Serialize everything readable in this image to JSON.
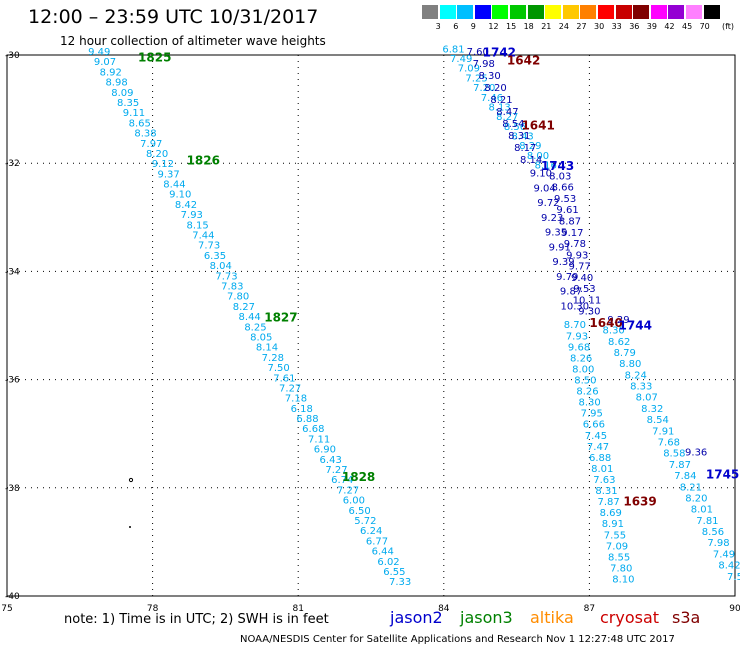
{
  "header": {
    "title": "12:00 – 23:59 UTC 10/31/2017",
    "subtitle": "12 hour collection of altimeter wave heights"
  },
  "legend": {
    "unit": "(ft)",
    "colors": [
      "#808080",
      "#00ffff",
      "#00bfff",
      "#0000ff",
      "#00ff00",
      "#00c800",
      "#009600",
      "#ffff00",
      "#ffc800",
      "#ff8000",
      "#ff0000",
      "#c80000",
      "#800000",
      "#ff00ff",
      "#9400d3",
      "#ff80ff",
      "#000000"
    ],
    "labels": [
      "3",
      "6",
      "9",
      "12",
      "15",
      "18",
      "21",
      "24",
      "27",
      "30",
      "33",
      "36",
      "39",
      "42",
      "45",
      "70"
    ]
  },
  "note": "note:  1) Time is in UTC;  2) SWH is in feet",
  "satellites": [
    {
      "name": "jason2",
      "color": "#0000cc"
    },
    {
      "name": "jason3",
      "color": "#008000"
    },
    {
      "name": "altika",
      "color": "#ff8c00"
    },
    {
      "name": "cryosat",
      "color": "#cc0000"
    },
    {
      "name": "s3a",
      "color": "#800000"
    }
  ],
  "footer": "NOAA/NESDIS Center for Satellite Applications and Research    Nov  1 12:27:48 UTC 2017",
  "chart_data": {
    "type": "scatter",
    "x_ticks": [
      "75",
      "78",
      "81",
      "84",
      "87",
      "90"
    ],
    "y_ticks": [
      "-30",
      "-32",
      "-34",
      "-36",
      "-38",
      "-40"
    ],
    "xlim": [
      75,
      90
    ],
    "ylim": [
      -40,
      -30
    ],
    "grid": true,
    "track_labels": [
      {
        "text": "1825",
        "color": "#008000",
        "lon": 77.7,
        "lat": -30.05
      },
      {
        "text": "1826",
        "color": "#008000",
        "lon": 78.7,
        "lat": -31.95
      },
      {
        "text": "1827",
        "color": "#008000",
        "lon": 80.3,
        "lat": -34.85
      },
      {
        "text": "1828",
        "color": "#008000",
        "lon": 81.9,
        "lat": -37.8
      },
      {
        "text": "1742",
        "color": "#0000cc",
        "lon": 84.8,
        "lat": -29.95
      },
      {
        "text": "1642",
        "color": "#800000",
        "lon": 85.3,
        "lat": -30.1
      },
      {
        "text": "1641",
        "color": "#800000",
        "lon": 85.6,
        "lat": -31.3
      },
      {
        "text": "1743",
        "color": "#0000cc",
        "lon": 86.0,
        "lat": -32.05
      },
      {
        "text": "1640",
        "color": "#800000",
        "lon": 87.0,
        "lat": -34.95
      },
      {
        "text": "1744",
        "color": "#0000cc",
        "lon": 87.6,
        "lat": -35.0
      },
      {
        "text": "1639",
        "color": "#800000",
        "lon": 87.7,
        "lat": -38.25
      },
      {
        "text": "1745",
        "color": "#0000cc",
        "lon": 89.4,
        "lat": -37.75
      }
    ],
    "tracks": [
      {
        "color": "#00aaee",
        "lon_start": 76.9,
        "lat_start": -30.0,
        "lon_end": 83.1,
        "lat_end": -39.8,
        "values": [
          "9.49",
          "9.07",
          "8.92",
          "8.98",
          "8.09",
          "8.35",
          "9.11",
          "8.65",
          "8.38",
          "7.97",
          "8.20",
          "9.12",
          "9.37",
          "8.44",
          "9.10",
          "8.42",
          "7.93",
          "8.15",
          "7.44",
          "7.73",
          "6.35",
          "8.04",
          "7.73",
          "7.83",
          "7.80",
          "8.27",
          "8.44",
          "8.25",
          "8.05",
          "8.14",
          "7.28",
          "7.50",
          "7.61",
          "7.27",
          "7.18",
          "6.18",
          "6.88",
          "6.68",
          "7.11",
          "6.90",
          "6.43",
          "7.27",
          "6.74",
          "7.27",
          "6.00",
          "6.50",
          "5.72",
          "6.24",
          "6.77",
          "6.44",
          "6.02",
          "6.55",
          "7.33"
        ]
      },
      {
        "color": "#00aaee",
        "lon_start": 84.2,
        "lat_start": -29.95,
        "lon_end": 86.1,
        "lat_end": -32.1,
        "values": [
          "6.81",
          "7.49",
          "7.09",
          "7.25",
          "7.20",
          "7.46",
          "8.13",
          "8.27",
          "8.56",
          "8.43",
          "8.29",
          "8.00",
          "8.16"
        ]
      },
      {
        "color": "#0000aa",
        "lon_start": 84.7,
        "lat_start": -30.0,
        "lon_end": 85.8,
        "lat_end": -32.0,
        "values": [
          "7.60",
          "7.98",
          "8.30",
          "8.20",
          "8.21",
          "8.47",
          "8.54",
          "8.31",
          "8.17",
          "8.14"
        ]
      },
      {
        "color": "#0000aa",
        "lon_start": 86.0,
        "lat_start": -32.25,
        "lon_end": 86.7,
        "lat_end": -34.7,
        "values": [
          "9.10",
          "9.04",
          "9.72",
          "9.23",
          "9.35",
          "9.91",
          "9.39",
          "9.79",
          "9.87",
          "10.30"
        ]
      },
      {
        "color": "#0000aa",
        "lon_start": 86.4,
        "lat_start": -32.3,
        "lon_end": 87.0,
        "lat_end": -34.8,
        "values": [
          "8.03",
          "8.66",
          "9.53",
          "9.61",
          "8.87",
          "9.17",
          "9.78",
          "9.93",
          "9.77",
          "9.40",
          "9.53",
          "10.11",
          "9.30"
        ]
      },
      {
        "color": "#00aaee",
        "lon_start": 86.7,
        "lat_start": -35.05,
        "lon_end": 87.7,
        "lat_end": -39.75,
        "values": [
          "8.70",
          "7.93",
          "9.68",
          "8.26",
          "8.00",
          "8.50",
          "8.26",
          "8.30",
          "7.95",
          "6.66",
          "7.45",
          "7.47",
          "6.88",
          "8.01",
          "7.63",
          "8.31",
          "7.87",
          "8.69",
          "8.91",
          "7.55",
          "7.09",
          "8.55",
          "7.80",
          "8.10"
        ]
      },
      {
        "color": "#0000aa",
        "lon_start": 87.6,
        "lat_start": -34.95,
        "lon_end": 89.2,
        "lat_end": -37.4,
        "values": [
          "9.29",
          "9.36"
        ]
      },
      {
        "color": "#00aaee",
        "lon_start": 87.5,
        "lat_start": -35.15,
        "lon_end": 90.0,
        "lat_end": -39.7,
        "values": [
          "8.30",
          "8.62",
          "8.79",
          "8.80",
          "8.24",
          "8.33",
          "8.07",
          "8.32",
          "8.54",
          "7.91",
          "7.68",
          "8.58",
          "7.87",
          "7.84",
          "8.21",
          "8.20",
          "8.01",
          "7.81",
          "8.56",
          "7.98",
          "7.49",
          "8.42",
          "7.5"
        ]
      }
    ]
  }
}
